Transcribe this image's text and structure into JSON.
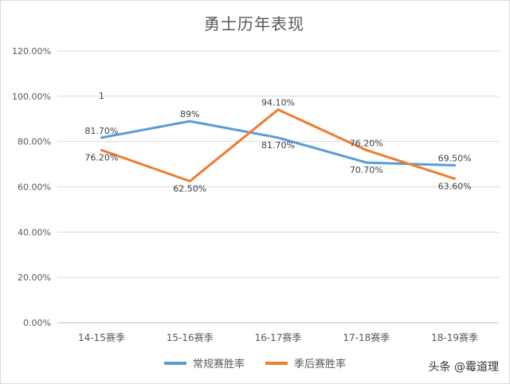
{
  "chart_data": {
    "type": "line",
    "title": "勇士历年表现",
    "categories": [
      "14-15赛季",
      "15-16赛季",
      "16-17赛季",
      "17-18赛季",
      "18-19赛季"
    ],
    "yticks": [
      "0.00%",
      "20.00%",
      "40.00%",
      "60.00%",
      "80.00%",
      "100.00%",
      "120.00%"
    ],
    "ylim": [
      0,
      1.2
    ],
    "grid": true,
    "legend_position": "bottom",
    "series": [
      {
        "name": "常规赛胜率",
        "color": "#5b9bd5",
        "values": [
          0.817,
          0.89,
          0.817,
          0.707,
          0.695
        ],
        "labels": [
          "81.70%",
          "89%",
          "81.70%",
          "70.70%",
          "69.50%"
        ]
      },
      {
        "name": "季后赛胜率",
        "color": "#ed7d31",
        "values": [
          0.762,
          0.625,
          0.941,
          0.762,
          0.636
        ],
        "labels": [
          "76.20%",
          "62.50%",
          "94.10%",
          "76.20%",
          "63.60%"
        ]
      }
    ],
    "annotation": "1"
  },
  "watermark": "头条 @霉道理"
}
